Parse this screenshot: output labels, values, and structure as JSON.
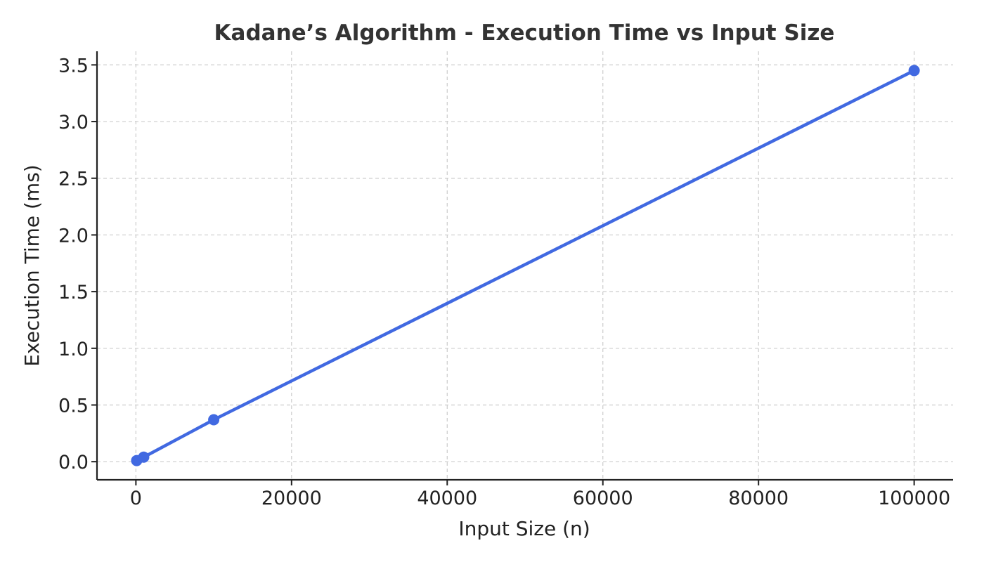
{
  "chart_data": {
    "type": "line",
    "title": "Kadane’s Algorithm - Execution Time vs Input Size",
    "xlabel": "Input Size (n)",
    "ylabel": "Execution Time (ms)",
    "xlim": [
      -5000,
      105000
    ],
    "ylim": [
      -0.16,
      3.62
    ],
    "xticks": [
      0,
      20000,
      40000,
      60000,
      80000,
      100000
    ],
    "xtick_labels": [
      "0",
      "20000",
      "40000",
      "60000",
      "80000",
      "100000"
    ],
    "yticks": [
      0.0,
      0.5,
      1.0,
      1.5,
      2.0,
      2.5,
      3.0,
      3.5
    ],
    "ytick_labels": [
      "0.0",
      "0.5",
      "1.0",
      "1.5",
      "2.0",
      "2.5",
      "3.0",
      "3.5"
    ],
    "grid": true,
    "series": [
      {
        "x": [
          100,
          1000,
          10000,
          100000
        ],
        "y": [
          0.01,
          0.04,
          0.37,
          3.45
        ],
        "color": "#4169E1",
        "marker": "circle"
      }
    ]
  }
}
